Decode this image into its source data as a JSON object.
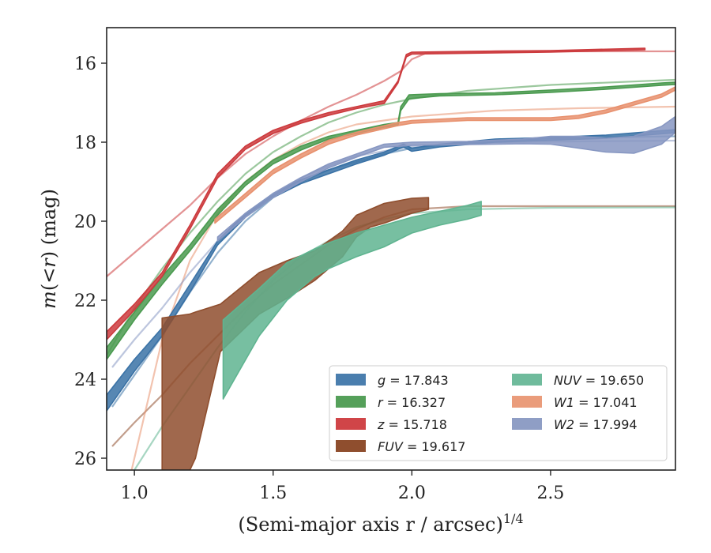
{
  "chart_data": {
    "type": "line",
    "xlabel": "(Semi-major axis r / arcsec)",
    "xlabel_sup": "1/4",
    "ylabel_parts": [
      "m",
      "(<",
      "r",
      ") (mag)"
    ],
    "xlim": [
      0.9,
      2.95
    ],
    "ylim": [
      26.3,
      15.1
    ],
    "y_inverted": true,
    "xticks": [
      1.0,
      1.5,
      2.0,
      2.5
    ],
    "xtick_labels": [
      "1.0",
      "1.5",
      "2.0",
      "2.5"
    ],
    "yticks": [
      16,
      18,
      20,
      22,
      24,
      26
    ],
    "ytick_labels": [
      "16",
      "18",
      "20",
      "22",
      "24",
      "26"
    ],
    "grid": false,
    "legend_position": "lower-right",
    "legend": [
      {
        "label_var": "g",
        "label_val": "= 17.843",
        "color": "#4a7eae"
      },
      {
        "label_var": "r",
        "label_val": "= 16.327",
        "color": "#55a05a"
      },
      {
        "label_var": "z",
        "label_val": "= 15.718",
        "color": "#d04548"
      },
      {
        "label_var": "FUV",
        "label_val": "= 19.617",
        "color": "#8f4e2e"
      },
      {
        "label_var": "NUV",
        "label_val": "= 19.650",
        "color": "#6fbb9c"
      },
      {
        "label_var": "W1",
        "label_val": "= 17.041",
        "color": "#ea9c7b"
      },
      {
        "label_var": "W2",
        "label_val": "= 17.994",
        "color": "#8f9ec5"
      }
    ],
    "series": [
      {
        "name": "g",
        "color": "#3a72a6",
        "band": [
          [
            0.9,
            24.4,
            24.8
          ],
          [
            1.0,
            23.5,
            23.8
          ],
          [
            1.1,
            22.7,
            22.9
          ],
          [
            1.2,
            21.6,
            21.8
          ],
          [
            1.3,
            20.5,
            20.6
          ],
          [
            1.4,
            19.8,
            19.9
          ],
          [
            1.5,
            19.3,
            19.4
          ],
          [
            1.6,
            18.95,
            19.05
          ],
          [
            1.7,
            18.7,
            18.8
          ],
          [
            1.8,
            18.45,
            18.55
          ],
          [
            1.9,
            18.25,
            18.33
          ],
          [
            1.97,
            18.05,
            18.12
          ],
          [
            2.0,
            18.15,
            18.23
          ],
          [
            2.1,
            18.05,
            18.12
          ],
          [
            2.3,
            17.92,
            18.0
          ],
          [
            2.5,
            17.88,
            17.95
          ],
          [
            2.7,
            17.82,
            17.9
          ],
          [
            2.95,
            17.68,
            17.76
          ]
        ],
        "model": [
          [
            0.92,
            24.7
          ],
          [
            1.0,
            23.9
          ],
          [
            1.1,
            22.9
          ],
          [
            1.2,
            21.8
          ],
          [
            1.3,
            20.8
          ],
          [
            1.4,
            20.0
          ],
          [
            1.5,
            19.4
          ],
          [
            1.6,
            19.0
          ],
          [
            1.7,
            18.7
          ],
          [
            1.8,
            18.5
          ],
          [
            1.9,
            18.3
          ],
          [
            2.0,
            18.15
          ],
          [
            2.2,
            18.0
          ],
          [
            2.5,
            17.9
          ],
          [
            2.95,
            17.85
          ]
        ]
      },
      {
        "name": "r",
        "color": "#4a9a4f",
        "band": [
          [
            0.9,
            23.2,
            23.5
          ],
          [
            1.0,
            22.3,
            22.5
          ],
          [
            1.1,
            21.4,
            21.6
          ],
          [
            1.2,
            20.6,
            20.75
          ],
          [
            1.3,
            19.7,
            19.85
          ],
          [
            1.4,
            19.0,
            19.1
          ],
          [
            1.5,
            18.45,
            18.55
          ],
          [
            1.6,
            18.1,
            18.2
          ],
          [
            1.7,
            17.85,
            17.92
          ],
          [
            1.8,
            17.7,
            17.78
          ],
          [
            1.9,
            17.55,
            17.62
          ],
          [
            1.95,
            17.5,
            17.58
          ],
          [
            1.96,
            17.1,
            17.2
          ],
          [
            1.99,
            16.8,
            16.9
          ],
          [
            2.1,
            16.77,
            16.83
          ],
          [
            2.3,
            16.75,
            16.8
          ],
          [
            2.5,
            16.68,
            16.74
          ],
          [
            2.7,
            16.6,
            16.66
          ],
          [
            2.9,
            16.5,
            16.56
          ],
          [
            2.95,
            16.48,
            16.54
          ]
        ],
        "model": [
          [
            0.9,
            23.4
          ],
          [
            1.0,
            22.2
          ],
          [
            1.1,
            21.2
          ],
          [
            1.2,
            20.3
          ],
          [
            1.3,
            19.5
          ],
          [
            1.4,
            18.8
          ],
          [
            1.5,
            18.25
          ],
          [
            1.6,
            17.85
          ],
          [
            1.7,
            17.5
          ],
          [
            1.8,
            17.25
          ],
          [
            1.9,
            17.05
          ],
          [
            2.0,
            16.9
          ],
          [
            2.2,
            16.7
          ],
          [
            2.5,
            16.55
          ],
          [
            2.95,
            16.42
          ]
        ]
      },
      {
        "name": "z",
        "color": "#cc3a3d",
        "band": [
          [
            0.9,
            22.8,
            23.0
          ],
          [
            1.0,
            22.1,
            22.25
          ],
          [
            1.1,
            21.3,
            21.4
          ],
          [
            1.2,
            20.1,
            20.2
          ],
          [
            1.3,
            18.8,
            18.9
          ],
          [
            1.4,
            18.1,
            18.18
          ],
          [
            1.5,
            17.7,
            17.78
          ],
          [
            1.6,
            17.45,
            17.52
          ],
          [
            1.7,
            17.25,
            17.32
          ],
          [
            1.8,
            17.1,
            17.15
          ],
          [
            1.9,
            16.95,
            17.02
          ],
          [
            1.95,
            16.45,
            16.5
          ],
          [
            1.98,
            15.78,
            15.84
          ],
          [
            2.0,
            15.72,
            15.77
          ],
          [
            2.2,
            15.7,
            15.75
          ],
          [
            2.5,
            15.68,
            15.72
          ],
          [
            2.84,
            15.62,
            15.66
          ]
        ],
        "model": [
          [
            0.9,
            21.4
          ],
          [
            1.0,
            20.8
          ],
          [
            1.1,
            20.2
          ],
          [
            1.2,
            19.6
          ],
          [
            1.3,
            18.9
          ],
          [
            1.4,
            18.3
          ],
          [
            1.5,
            17.85
          ],
          [
            1.6,
            17.45
          ],
          [
            1.7,
            17.1
          ],
          [
            1.8,
            16.8
          ],
          [
            1.9,
            16.45
          ],
          [
            1.96,
            16.2
          ],
          [
            2.0,
            15.9
          ],
          [
            2.05,
            15.75
          ],
          [
            2.3,
            15.7
          ],
          [
            2.95,
            15.7
          ]
        ]
      },
      {
        "name": "FUV",
        "color": "#8f4e2e",
        "band": [
          [
            1.1,
            22.45,
            26.3
          ],
          [
            1.2,
            22.35,
            26.3
          ],
          [
            1.22,
            22.3,
            26.0
          ],
          [
            1.31,
            22.1,
            23.3
          ],
          [
            1.45,
            21.3,
            22.35
          ],
          [
            1.55,
            21.0,
            21.95
          ],
          [
            1.65,
            20.75,
            21.5
          ],
          [
            1.75,
            20.25,
            20.9
          ],
          [
            1.8,
            19.85,
            20.4
          ],
          [
            1.85,
            19.7,
            20.15
          ],
          [
            1.9,
            19.55,
            20.05
          ],
          [
            2.0,
            19.42,
            19.8
          ],
          [
            2.06,
            19.4,
            19.7
          ]
        ],
        "model": [
          [
            0.92,
            25.7
          ],
          [
            1.0,
            25.1
          ],
          [
            1.1,
            24.4
          ],
          [
            1.2,
            23.6
          ],
          [
            1.3,
            22.9
          ],
          [
            1.4,
            22.2
          ],
          [
            1.5,
            21.6
          ],
          [
            1.6,
            21.1
          ],
          [
            1.7,
            20.6
          ],
          [
            1.8,
            20.2
          ],
          [
            1.9,
            19.9
          ],
          [
            2.0,
            19.7
          ],
          [
            2.2,
            19.62
          ],
          [
            2.95,
            19.62
          ]
        ]
      },
      {
        "name": "NUV",
        "color": "#5fb490",
        "band": [
          [
            1.32,
            22.5,
            24.5
          ],
          [
            1.45,
            21.7,
            22.9
          ],
          [
            1.55,
            21.05,
            22.0
          ],
          [
            1.65,
            20.7,
            21.4
          ],
          [
            1.7,
            20.55,
            21.2
          ],
          [
            1.8,
            20.3,
            20.9
          ],
          [
            1.9,
            20.1,
            20.65
          ],
          [
            2.0,
            19.9,
            20.3
          ],
          [
            2.1,
            19.75,
            20.1
          ],
          [
            2.2,
            19.6,
            19.95
          ],
          [
            2.25,
            19.5,
            19.85
          ]
        ],
        "model": [
          [
            1.0,
            26.3
          ],
          [
            1.1,
            25.2
          ],
          [
            1.2,
            24.2
          ],
          [
            1.3,
            23.2
          ],
          [
            1.4,
            22.3
          ],
          [
            1.5,
            21.5
          ],
          [
            1.6,
            20.9
          ],
          [
            1.7,
            20.5
          ],
          [
            1.8,
            20.15
          ],
          [
            1.9,
            19.95
          ],
          [
            2.0,
            19.8
          ],
          [
            2.2,
            19.7
          ],
          [
            2.5,
            19.66
          ],
          [
            2.95,
            19.65
          ]
        ]
      },
      {
        "name": "W1",
        "color": "#e8916e",
        "band": [
          [
            1.29,
            19.95,
            20.05
          ],
          [
            1.4,
            19.3,
            19.4
          ],
          [
            1.5,
            18.7,
            18.8
          ],
          [
            1.6,
            18.3,
            18.4
          ],
          [
            1.7,
            17.95,
            18.05
          ],
          [
            1.8,
            17.75,
            17.82
          ],
          [
            1.95,
            17.5,
            17.58
          ],
          [
            2.0,
            17.45,
            17.52
          ],
          [
            2.2,
            17.38,
            17.45
          ],
          [
            2.4,
            17.38,
            17.45
          ],
          [
            2.5,
            17.38,
            17.45
          ],
          [
            2.6,
            17.32,
            17.4
          ],
          [
            2.7,
            17.18,
            17.26
          ],
          [
            2.8,
            16.98,
            17.06
          ],
          [
            2.9,
            16.78,
            16.86
          ],
          [
            2.95,
            16.6,
            16.68
          ]
        ],
        "model": [
          [
            0.99,
            26.3
          ],
          [
            1.05,
            24.5
          ],
          [
            1.1,
            23.0
          ],
          [
            1.2,
            21.0
          ],
          [
            1.3,
            19.8
          ],
          [
            1.4,
            19.0
          ],
          [
            1.5,
            18.45
          ],
          [
            1.6,
            18.05
          ],
          [
            1.7,
            17.75
          ],
          [
            1.8,
            17.55
          ],
          [
            2.0,
            17.35
          ],
          [
            2.3,
            17.2
          ],
          [
            2.6,
            17.14
          ],
          [
            2.95,
            17.1
          ]
        ]
      },
      {
        "name": "W2",
        "color": "#8797c2",
        "band": [
          [
            1.3,
            20.4,
            20.5
          ],
          [
            1.4,
            19.8,
            19.9
          ],
          [
            1.5,
            19.3,
            19.4
          ],
          [
            1.6,
            18.9,
            19.0
          ],
          [
            1.7,
            18.55,
            18.65
          ],
          [
            1.8,
            18.3,
            18.38
          ],
          [
            1.9,
            18.05,
            18.13
          ],
          [
            2.0,
            18.0,
            18.08
          ],
          [
            2.2,
            17.98,
            18.06
          ],
          [
            2.4,
            17.92,
            18.04
          ],
          [
            2.5,
            17.85,
            18.05
          ],
          [
            2.6,
            17.85,
            18.15
          ],
          [
            2.7,
            17.9,
            18.25
          ],
          [
            2.8,
            17.85,
            18.28
          ],
          [
            2.9,
            17.6,
            18.05
          ],
          [
            2.95,
            17.35,
            17.75
          ]
        ],
        "model": [
          [
            0.92,
            23.7
          ],
          [
            1.0,
            23.0
          ],
          [
            1.1,
            22.2
          ],
          [
            1.2,
            21.3
          ],
          [
            1.3,
            20.5
          ],
          [
            1.4,
            19.85
          ],
          [
            1.5,
            19.3
          ],
          [
            1.6,
            18.9
          ],
          [
            1.7,
            18.6
          ],
          [
            1.8,
            18.35
          ],
          [
            2.0,
            18.1
          ],
          [
            2.3,
            18.0
          ],
          [
            2.6,
            17.98
          ],
          [
            2.95,
            17.96
          ]
        ]
      }
    ]
  }
}
